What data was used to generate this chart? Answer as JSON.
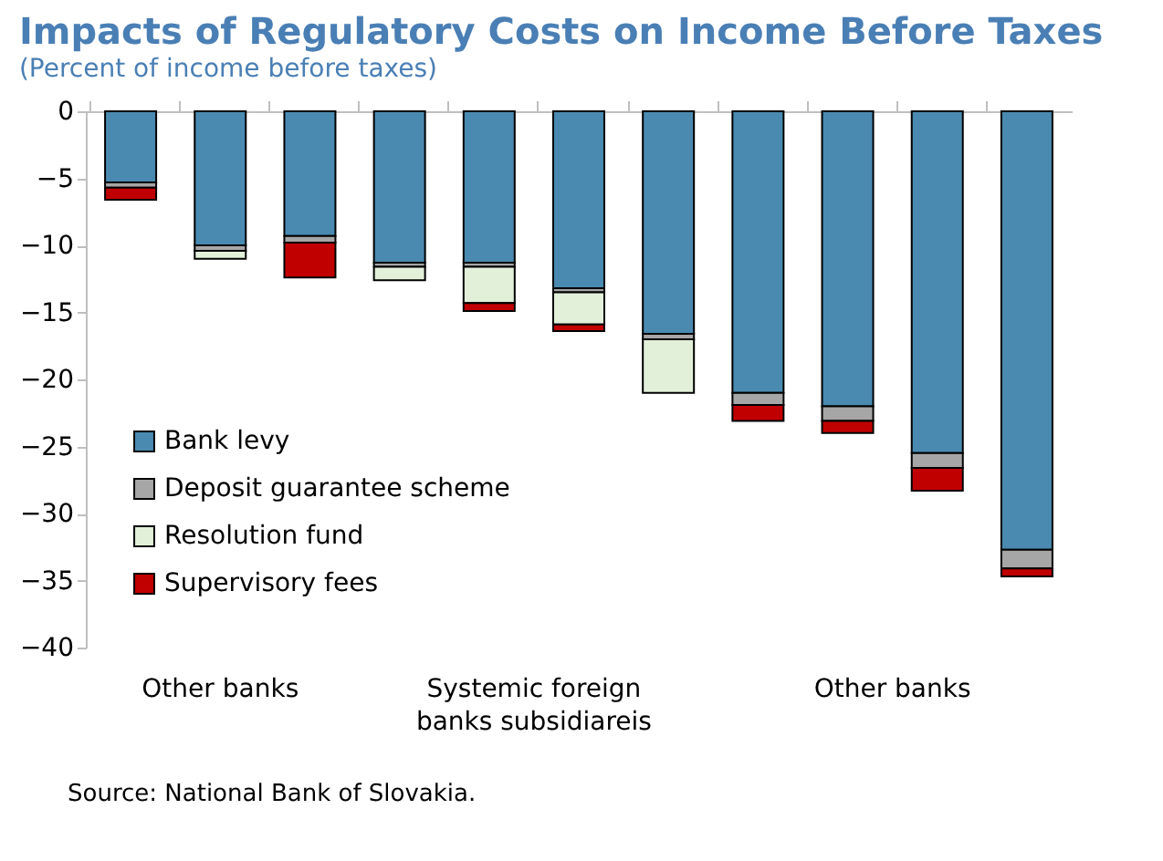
{
  "chart_data": {
    "type": "bar",
    "title": "Impacts of Regulatory Costs on Income Before Taxes",
    "subtitle": "(Percent of income before taxes)",
    "categories": [
      null,
      null,
      null,
      null,
      null,
      null,
      null,
      null,
      null,
      null,
      null
    ],
    "stacked": true,
    "legend": "bottom left",
    "grid": false,
    "ylim": [
      -40,
      0
    ],
    "yticks": [
      0,
      -5,
      -10,
      -15,
      -20,
      -25,
      -30,
      -35,
      -40
    ],
    "series": [
      {
        "name": "Bank levy",
        "color": "#4a8ab0",
        "values": [
          -5.3,
          -10.0,
          -9.3,
          -11.3,
          -11.3,
          -13.2,
          -16.6,
          -21.0,
          -22.0,
          -25.5,
          -32.7
        ]
      },
      {
        "name": "Deposit guarantee scheme",
        "color": "#a6a6a6",
        "values": [
          -0.4,
          -0.4,
          -0.5,
          -0.3,
          -0.3,
          -0.3,
          -0.4,
          -0.9,
          -1.1,
          -1.1,
          -1.4
        ]
      },
      {
        "name": "Resolution fund",
        "color": "#e2efd9",
        "values": [
          null,
          -0.6,
          null,
          -1.0,
          -2.7,
          -2.4,
          -4.0,
          null,
          null,
          null,
          null
        ]
      },
      {
        "name": "Supervisory fees",
        "color": "#c00000",
        "values": [
          -0.9,
          null,
          -2.6,
          null,
          -0.6,
          -0.5,
          null,
          -1.2,
          -0.9,
          -1.7,
          -0.6
        ]
      }
    ],
    "annotations": [
      "Other banks",
      "Systemic foreign\nbanks subsidiareis",
      "Other banks",
      "Source: National Bank of Slovakia."
    ]
  }
}
